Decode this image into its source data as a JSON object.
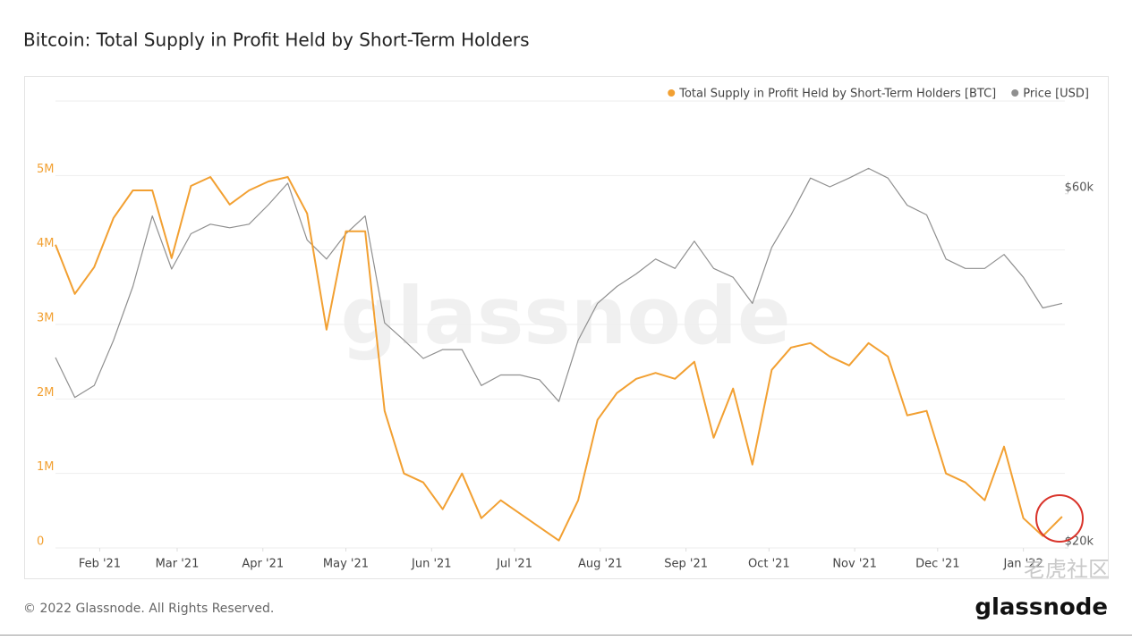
{
  "chart_data": {
    "type": "line",
    "title": "Bitcoin: Total Supply in Profit Held by Short-Term Holders",
    "x": [
      "2021-01-16",
      "2021-01-23",
      "2021-01-30",
      "2021-02-06",
      "2021-02-13",
      "2021-02-20",
      "2021-02-27",
      "2021-03-06",
      "2021-03-13",
      "2021-03-20",
      "2021-03-27",
      "2021-04-03",
      "2021-04-10",
      "2021-04-17",
      "2021-04-24",
      "2021-05-01",
      "2021-05-08",
      "2021-05-15",
      "2021-05-22",
      "2021-05-29",
      "2021-06-05",
      "2021-06-12",
      "2021-06-19",
      "2021-06-26",
      "2021-07-03",
      "2021-07-10",
      "2021-07-17",
      "2021-07-24",
      "2021-07-31",
      "2021-08-07",
      "2021-08-14",
      "2021-08-21",
      "2021-08-28",
      "2021-09-04",
      "2021-09-11",
      "2021-09-18",
      "2021-09-25",
      "2021-10-02",
      "2021-10-09",
      "2021-10-16",
      "2021-10-23",
      "2021-10-30",
      "2021-11-06",
      "2021-11-13",
      "2021-11-20",
      "2021-11-27",
      "2021-12-04",
      "2021-12-11",
      "2021-12-18",
      "2021-12-25",
      "2022-01-01",
      "2022-01-08",
      "2022-01-15"
    ],
    "xlim": [
      "2021-01-16",
      "2022-01-16"
    ],
    "xticks": [
      {
        "value": "2021-02-01",
        "label": "Feb '21"
      },
      {
        "value": "2021-03-01",
        "label": "Mar '21"
      },
      {
        "value": "2021-04-01",
        "label": "Apr '21"
      },
      {
        "value": "2021-05-01",
        "label": "May '21"
      },
      {
        "value": "2021-06-01",
        "label": "Jun '21"
      },
      {
        "value": "2021-07-01",
        "label": "Jul '21"
      },
      {
        "value": "2021-08-01",
        "label": "Aug '21"
      },
      {
        "value": "2021-09-01",
        "label": "Sep '21"
      },
      {
        "value": "2021-10-01",
        "label": "Oct '21"
      },
      {
        "value": "2021-11-01",
        "label": "Nov '21"
      },
      {
        "value": "2021-12-01",
        "label": "Dec '21"
      },
      {
        "value": "2022-01-01",
        "label": "Jan '22"
      }
    ],
    "ylim": [
      0,
      6000000
    ],
    "yticks": [
      0,
      {
        "value": 1000000,
        "label": "1M"
      },
      {
        "value": 2000000,
        "label": "2M"
      },
      {
        "value": 3000000,
        "label": "3M"
      },
      {
        "value": 4000000,
        "label": "4M"
      },
      {
        "value": 5000000,
        "label": "5M"
      }
    ],
    "y2lim": [
      20000,
      80000
    ],
    "y2scale": "log",
    "y2ticks": [
      {
        "value": 20000,
        "label": "$20k"
      },
      {
        "value": 60000,
        "label": "$60k"
      }
    ],
    "grid": true,
    "legend": "top-right",
    "series": [
      {
        "name": "Total Supply in Profit Held by Short-Term Holders [BTC]",
        "color": "#f2a032",
        "values": [
          4070000,
          3410000,
          3770000,
          4430000,
          4800000,
          4800000,
          3890000,
          4860000,
          4980000,
          4610000,
          4800000,
          4920000,
          4980000,
          4490000,
          2930000,
          4250000,
          4250000,
          1840000,
          1000000,
          880000,
          520000,
          1000000,
          400000,
          640000,
          460000,
          280000,
          100000,
          640000,
          1720000,
          2080000,
          2270000,
          2350000,
          2270000,
          2500000,
          1480000,
          2140000,
          1120000,
          2390000,
          2690000,
          2750000,
          2570000,
          2450000,
          2750000,
          2570000,
          1780000,
          1840000,
          1000000,
          880000,
          640000,
          1360000,
          400000,
          160000,
          420000
        ]
      },
      {
        "name": "Price [USD]",
        "color": "#8f8f8f",
        "axis": "y2",
        "values": [
          36100,
          31900,
          33100,
          38100,
          45000,
          56000,
          47500,
          53000,
          54600,
          54000,
          54600,
          58000,
          62000,
          52000,
          49000,
          53000,
          56000,
          40200,
          38100,
          36000,
          37000,
          37000,
          33100,
          34200,
          34200,
          33700,
          31500,
          38100,
          42700,
          45000,
          46800,
          49000,
          47600,
          51800,
          47600,
          46300,
          42700,
          50800,
          56200,
          63000,
          61300,
          63000,
          64900,
          63000,
          57900,
          56200,
          49000,
          47600,
          47600,
          49700,
          46300,
          42100,
          42700
        ]
      }
    ]
  },
  "watermark": "glassnode",
  "footer": "© 2022 Glassnode. All Rights Reserved.",
  "logo": "glassnode",
  "watermark_cn": "老虎社区"
}
